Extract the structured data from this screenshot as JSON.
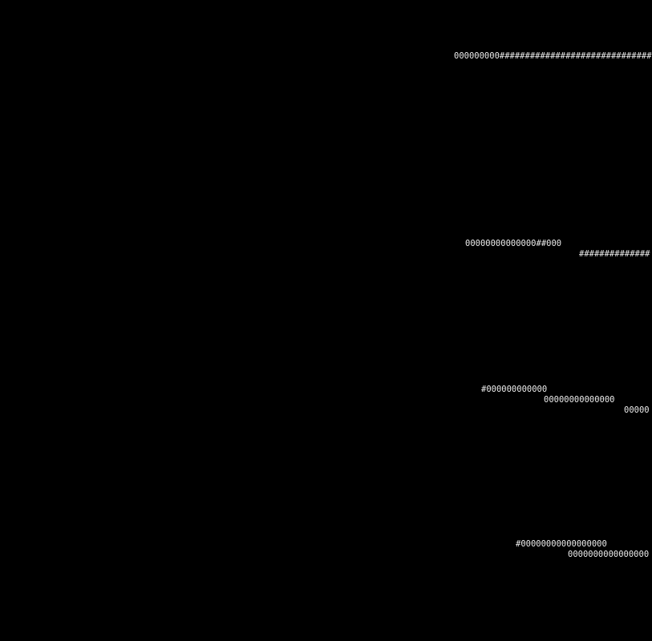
{
  "screen": {
    "background_color": "#000000",
    "text_color": "#ebebeb"
  },
  "ascii_art": {
    "fragments": [
      {
        "text": "000000000##############################"
      },
      {
        "text": "00000000000000##000"
      },
      {
        "text": "##############"
      },
      {
        "text": "#000000000000"
      },
      {
        "text": "00000000000000"
      },
      {
        "text": "00000"
      },
      {
        "text": "#00000000000000000"
      },
      {
        "text": "0000000000000000"
      }
    ]
  }
}
